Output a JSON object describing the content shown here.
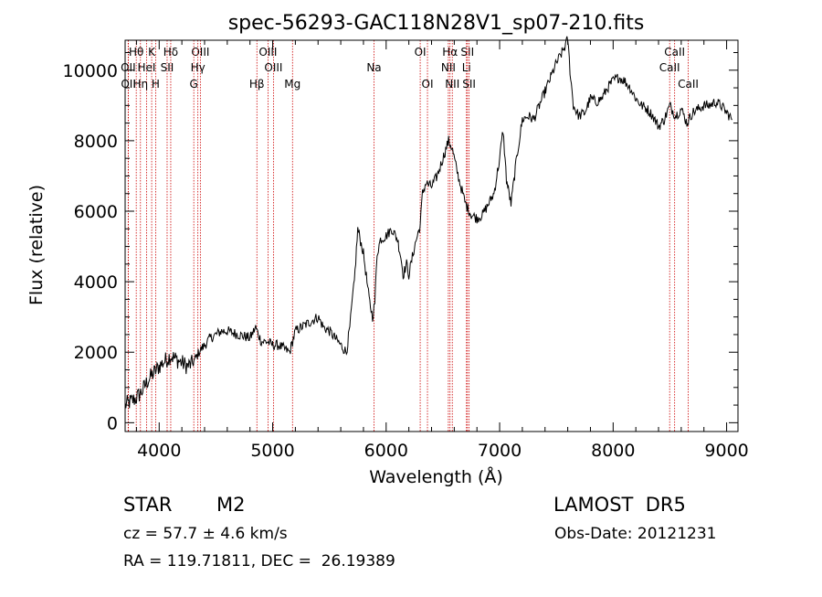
{
  "info": {
    "object_class": "STAR",
    "subclass": "M2",
    "survey": "LAMOST  DR5",
    "cz": "cz = 57.7 ± 4.6 km/s",
    "obs_date": "Obs-Date: 20121231",
    "coords": "RA = 119.71811, DEC =  26.19389"
  },
  "chart_data": {
    "type": "line",
    "title": "spec-56293-GAC118N28V1_sp07-210.fits",
    "xlabel": "Wavelength (Å)",
    "ylabel": "Flux (relative)",
    "xlim": [
      3700,
      9100
    ],
    "ylim": [
      -250,
      10850
    ],
    "xticks": [
      4000,
      5000,
      6000,
      7000,
      8000,
      9000
    ],
    "yticks": [
      0,
      2000,
      4000,
      6000,
      8000,
      10000
    ],
    "grid": false,
    "line_color": "#000000",
    "marker_color": "#cc0000",
    "spectral_lines": [
      {
        "label": "Hθ",
        "wavelength": 3798,
        "row": 0
      },
      {
        "label": "K",
        "wavelength": 3934,
        "row": 0
      },
      {
        "label": "Hδ",
        "wavelength": 4102,
        "row": 0
      },
      {
        "label": "OIII",
        "wavelength": 4363,
        "row": 0
      },
      {
        "label": "OIII",
        "wavelength": 4959,
        "row": 0
      },
      {
        "label": "OI",
        "wavelength": 6300,
        "row": 0
      },
      {
        "label": "Hα",
        "wavelength": 6563,
        "row": 0
      },
      {
        "label": "SII",
        "wavelength": 6716,
        "row": 0
      },
      {
        "label": "CaII",
        "wavelength": 8542,
        "row": 0
      },
      {
        "label": "OII",
        "wavelength": 3727,
        "row": 1
      },
      {
        "label": "HeI",
        "wavelength": 3889,
        "row": 1
      },
      {
        "label": "SII",
        "wavelength": 4070,
        "row": 1
      },
      {
        "label": "Hγ",
        "wavelength": 4341,
        "row": 1
      },
      {
        "label": "OIII",
        "wavelength": 5007,
        "row": 1
      },
      {
        "label": "NII",
        "wavelength": 6548,
        "row": 1
      },
      {
        "label": "Li",
        "wavelength": 6708,
        "row": 1
      },
      {
        "label": "CaII",
        "wavelength": 8498,
        "row": 1
      },
      {
        "label": "OII",
        "wavelength": 3729,
        "row": 2
      },
      {
        "label": "Hη",
        "wavelength": 3835,
        "row": 2
      },
      {
        "label": "H",
        "wavelength": 3969,
        "row": 2
      },
      {
        "label": "G",
        "wavelength": 4305,
        "row": 2
      },
      {
        "label": "Hβ",
        "wavelength": 4861,
        "row": 2
      },
      {
        "label": "Mg",
        "wavelength": 5175,
        "row": 2
      },
      {
        "label": "Na",
        "wavelength": 5893,
        "row": 0.5
      },
      {
        "label": "OI",
        "wavelength": 6364,
        "row": 2
      },
      {
        "label": "NII",
        "wavelength": 6583,
        "row": 2
      },
      {
        "label": "SII",
        "wavelength": 6731,
        "row": 2
      },
      {
        "label": "CaII",
        "wavelength": 8662,
        "row": 2
      }
    ],
    "series": [
      {
        "x": [
          3700,
          3750,
          3800,
          3850,
          3900,
          3950,
          4000,
          4050,
          4100,
          4150,
          4200,
          4250,
          4300,
          4350,
          4400,
          4450,
          4500,
          4550,
          4600,
          4700,
          4800,
          4850,
          4900,
          4950,
          5000,
          5050,
          5100,
          5150,
          5200,
          5250,
          5300,
          5350,
          5400,
          5450,
          5500,
          5550,
          5600,
          5650,
          5680,
          5700,
          5720,
          5750,
          5800,
          5850,
          5880,
          5900,
          5920,
          5950,
          6000,
          6050,
          6100,
          6130,
          6150,
          6180,
          6200,
          6250,
          6300,
          6320,
          6350,
          6400,
          6450,
          6500,
          6550,
          6580,
          6620,
          6650,
          6700,
          6750,
          6800,
          6850,
          6900,
          6950,
          7000,
          7030,
          7060,
          7100,
          7150,
          7200,
          7250,
          7300,
          7350,
          7400,
          7450,
          7500,
          7550,
          7580,
          7600,
          7620,
          7650,
          7680,
          7700,
          7750,
          7800,
          7850,
          7900,
          7950,
          8000,
          8050,
          8100,
          8150,
          8200,
          8250,
          8300,
          8350,
          8400,
          8450,
          8500,
          8550,
          8600,
          8650,
          8700,
          8750,
          8800,
          8850,
          8900,
          8950,
          9000,
          9050
        ],
        "values": [
          500,
          600,
          700,
          900,
          1200,
          1400,
          1600,
          1750,
          1900,
          1800,
          1700,
          1600,
          1700,
          2000,
          2200,
          2400,
          2500,
          2600,
          2600,
          2500,
          2400,
          2700,
          2300,
          2300,
          2200,
          2200,
          2100,
          2000,
          2600,
          2700,
          2800,
          2900,
          3000,
          2700,
          2600,
          2400,
          2200,
          2000,
          2700,
          3400,
          4000,
          5500,
          4800,
          3500,
          3000,
          3400,
          4800,
          5200,
          5300,
          5500,
          5200,
          4700,
          4200,
          4500,
          4200,
          5000,
          5600,
          6500,
          6800,
          6700,
          7000,
          7500,
          8000,
          7800,
          7200,
          6800,
          6200,
          5900,
          5800,
          5900,
          6200,
          6500,
          7500,
          8300,
          6900,
          6200,
          7500,
          8600,
          8700,
          8600,
          9000,
          9400,
          9800,
          10200,
          10500,
          10700,
          10900,
          10000,
          9000,
          8800,
          8700,
          8800,
          9200,
          9100,
          9200,
          9500,
          9700,
          9800,
          9700,
          9500,
          9200,
          9000,
          8900,
          8700,
          8400,
          8600,
          9000,
          8700,
          8900,
          8500,
          8800,
          8900,
          9000,
          9000,
          9100,
          9000,
          8800,
          8600
        ]
      }
    ]
  }
}
